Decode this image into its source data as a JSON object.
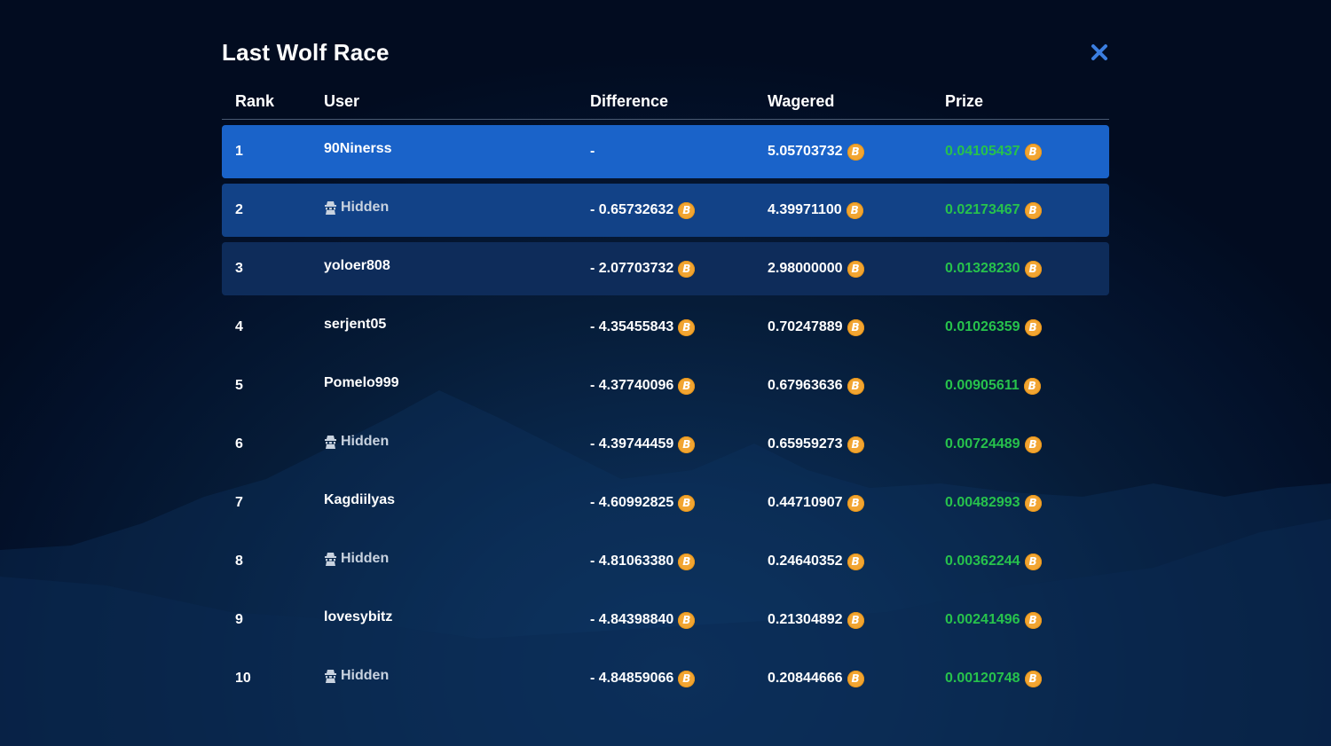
{
  "modal": {
    "title": "Last Wolf Race"
  },
  "table": {
    "columns": {
      "rank": "Rank",
      "user": "User",
      "difference": "Difference",
      "wagered": "Wagered",
      "prize": "Prize"
    },
    "rows": [
      {
        "rank": "1",
        "user": "90Ninerss",
        "hidden": false,
        "difference": "-",
        "difference_coin": false,
        "wagered": "5.05703732",
        "prize": "0.04105437"
      },
      {
        "rank": "2",
        "user": "Hidden",
        "hidden": true,
        "difference": "- 0.65732632",
        "difference_coin": true,
        "wagered": "4.39971100",
        "prize": "0.02173467"
      },
      {
        "rank": "3",
        "user": "yoloer808",
        "hidden": false,
        "difference": "- 2.07703732",
        "difference_coin": true,
        "wagered": "2.98000000",
        "prize": "0.01328230"
      },
      {
        "rank": "4",
        "user": "serjent05",
        "hidden": false,
        "difference": "- 4.35455843",
        "difference_coin": true,
        "wagered": "0.70247889",
        "prize": "0.01026359"
      },
      {
        "rank": "5",
        "user": "Pomelo999",
        "hidden": false,
        "difference": "- 4.37740096",
        "difference_coin": true,
        "wagered": "0.67963636",
        "prize": "0.00905611"
      },
      {
        "rank": "6",
        "user": "Hidden",
        "hidden": true,
        "difference": "- 4.39744459",
        "difference_coin": true,
        "wagered": "0.65959273",
        "prize": "0.00724489"
      },
      {
        "rank": "7",
        "user": "Kagdiilyas",
        "hidden": false,
        "difference": "- 4.60992825",
        "difference_coin": true,
        "wagered": "0.44710907",
        "prize": "0.00482993"
      },
      {
        "rank": "8",
        "user": "Hidden",
        "hidden": true,
        "difference": "- 4.81063380",
        "difference_coin": true,
        "wagered": "0.24640352",
        "prize": "0.00362244"
      },
      {
        "rank": "9",
        "user": "lovesybitz",
        "hidden": false,
        "difference": "- 4.84398840",
        "difference_coin": true,
        "wagered": "0.21304892",
        "prize": "0.00241496"
      },
      {
        "rank": "10",
        "user": "Hidden",
        "hidden": true,
        "difference": "- 4.84859066",
        "difference_coin": true,
        "wagered": "0.20844666",
        "prize": "0.00120748"
      }
    ]
  },
  "icons": {
    "close": "close-icon",
    "currency": "bitcoin-icon",
    "hidden_user": "incognito-icon",
    "currency_glyph": "B"
  },
  "colors": {
    "row_1": "#1a63c9",
    "row_2": "#124287",
    "row_3": "#0e2c5a",
    "prize": "#27c24c",
    "coin": "#f2a532",
    "close": "#3b7ee0"
  }
}
